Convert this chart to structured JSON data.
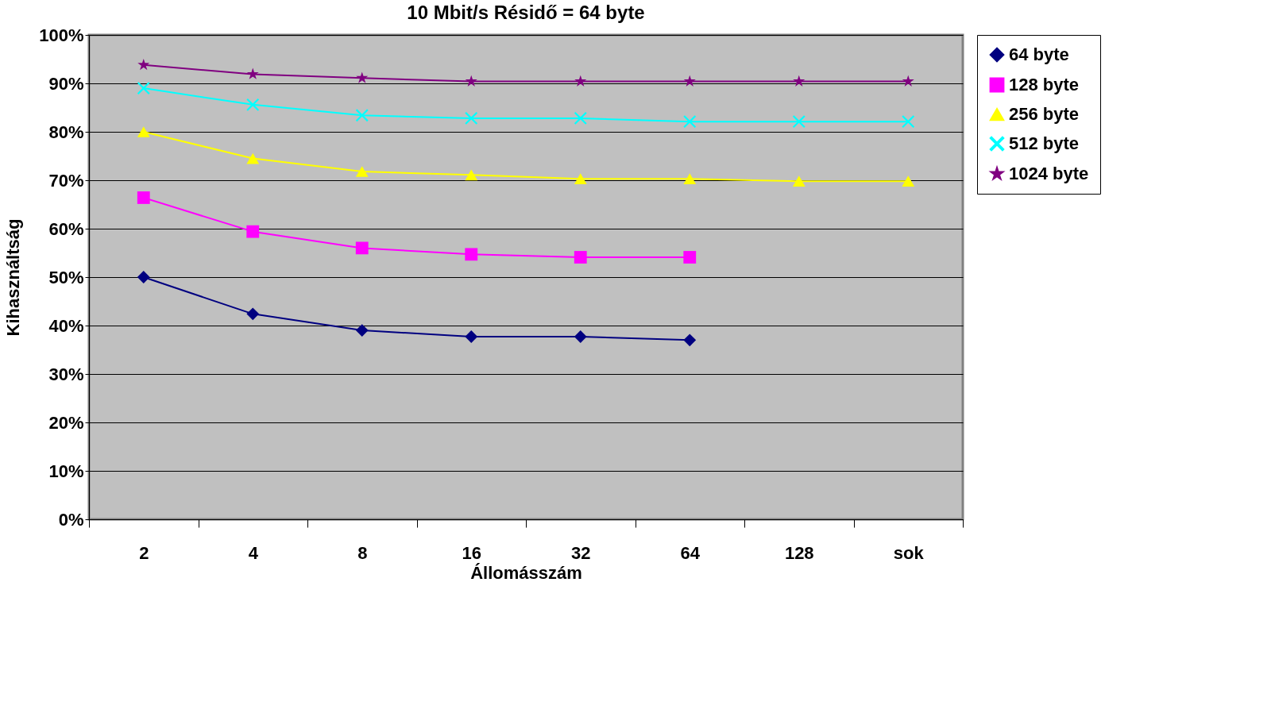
{
  "chart_data": {
    "type": "line",
    "title": "10 Mbit/s    Résidő = 64 byte",
    "xlabel": "Állomásszám",
    "ylabel": "Kihasználtság",
    "categories": [
      "2",
      "4",
      "8",
      "16",
      "32",
      "64",
      "128",
      "sok"
    ],
    "series": [
      {
        "name": "64 byte",
        "color": "#000080",
        "marker": "diamond",
        "values": [
          50.0,
          42.4,
          39.0,
          37.7,
          37.7,
          37.0,
          null,
          null
        ]
      },
      {
        "name": "128 byte",
        "color": "#ff00ff",
        "marker": "square",
        "values": [
          66.4,
          59.4,
          56.0,
          54.7,
          54.1,
          54.1,
          null,
          null
        ]
      },
      {
        "name": "256 byte",
        "color": "#ffff00",
        "marker": "triangle",
        "values": [
          80.0,
          74.5,
          71.8,
          71.1,
          70.3,
          70.3,
          69.8,
          69.8
        ]
      },
      {
        "name": "512 byte",
        "color": "#00ffff",
        "marker": "cross",
        "values": [
          89.0,
          85.6,
          83.4,
          82.8,
          82.8,
          82.1,
          82.1,
          82.1
        ]
      },
      {
        "name": "1024 byte",
        "color": "#800080",
        "marker": "star",
        "values": [
          93.8,
          91.9,
          91.1,
          90.4,
          90.4,
          90.4,
          90.4,
          90.4
        ]
      }
    ],
    "ylim": [
      0,
      100
    ],
    "yticks": [
      {
        "value": 0,
        "label": "0%"
      },
      {
        "value": 10,
        "label": "10%"
      },
      {
        "value": 20,
        "label": "20%"
      },
      {
        "value": 30,
        "label": "30%"
      },
      {
        "value": 40,
        "label": "40%"
      },
      {
        "value": 50,
        "label": "50%"
      },
      {
        "value": 60,
        "label": "60%"
      },
      {
        "value": 70,
        "label": "70%"
      },
      {
        "value": 80,
        "label": "80%"
      },
      {
        "value": 90,
        "label": "90%"
      },
      {
        "value": 100,
        "label": "100%"
      }
    ],
    "grid": "y",
    "legend": "right",
    "line_style": "solid"
  }
}
